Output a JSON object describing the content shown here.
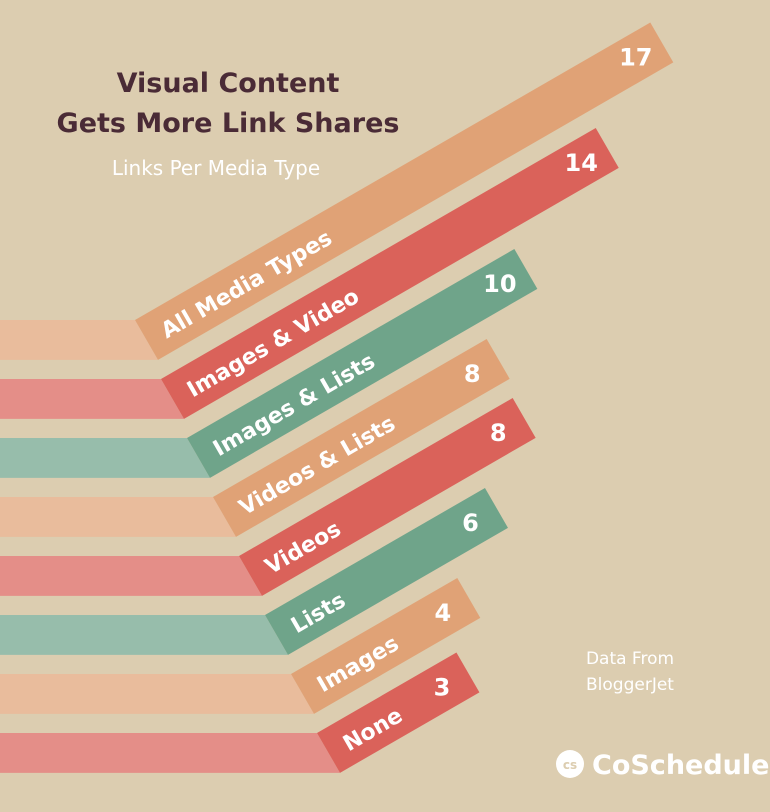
{
  "title_line1": "Visual Content",
  "title_line2": "Gets More Link Shares",
  "subtitle": "Links Per Media Type",
  "source_line1": "Data From",
  "source_line2": "BloggerJet",
  "brand": "CoSchedule",
  "brand_icon": "coschedule-logo-icon",
  "colors": {
    "background": "#dccdb0",
    "orange": "#e0a276",
    "red": "#da625a",
    "green": "#6fa48a",
    "title": "#4a2b36",
    "white": "#ffffff"
  },
  "chart_data": {
    "type": "bar",
    "categories": [
      "All Media Types",
      "Images & Video",
      "Images & Lists",
      "Videos & Lists",
      "Videos",
      "Lists",
      "Images",
      "None"
    ],
    "values": [
      17,
      14,
      10,
      8,
      8,
      6,
      4,
      3
    ],
    "bar_colors": [
      "orange",
      "red",
      "green",
      "orange",
      "red",
      "green",
      "orange",
      "red"
    ],
    "value_labels": [
      "17",
      "14",
      "10",
      "8",
      "8",
      "6",
      "4",
      "3"
    ]
  }
}
